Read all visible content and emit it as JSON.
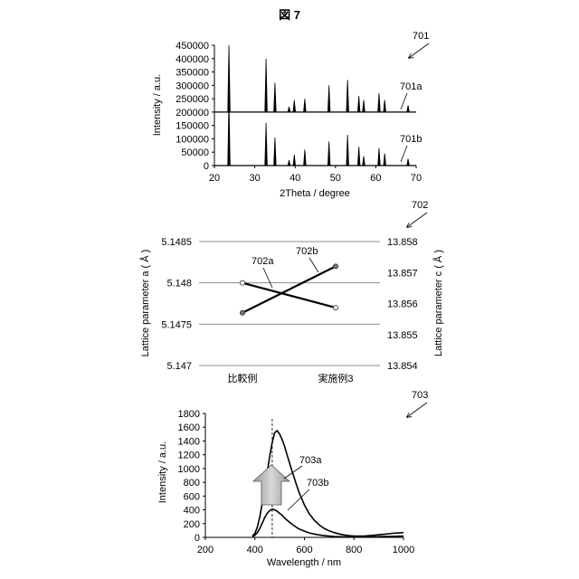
{
  "figure_title": "図 7",
  "panel_701": {
    "ref": "701",
    "ylabel": "Intensity / a.u.",
    "xlabel": "2Theta / degree",
    "yticks": [
      "450000",
      "400000",
      "350000",
      "300000",
      "250000",
      "200000",
      "150000",
      "100000",
      "50000",
      "0"
    ],
    "xticks": [
      "20",
      "30",
      "40",
      "50",
      "60",
      "70"
    ],
    "label_a": "701a",
    "label_b": "701b"
  },
  "panel_702": {
    "ref": "702",
    "ylabel_left": "Lattice parameter a ( Å )",
    "ylabel_right": "Lattice parameter c ( Å )",
    "yticks_left": [
      "5.1485",
      "5.148",
      "5.1475",
      "5.147"
    ],
    "yticks_right": [
      "13.858",
      "13.857",
      "13.856",
      "13.855",
      "13.854"
    ],
    "categories": [
      "比較例",
      "実施例3"
    ],
    "label_a": "702a",
    "label_b": "702b"
  },
  "panel_703": {
    "ref": "703",
    "ylabel": "Intensity / a.u.",
    "xlabel": "Wavelength / nm",
    "yticks": [
      "1800",
      "1600",
      "1400",
      "1200",
      "1000",
      "800",
      "600",
      "400",
      "200",
      "0"
    ],
    "xticks": [
      "200",
      "400",
      "600",
      "800",
      "1000"
    ],
    "label_a": "703a",
    "label_b": "703b"
  },
  "chart_data": [
    {
      "type": "line",
      "panel": "701",
      "xlabel": "2Theta / degree",
      "ylabel": "Intensity / a.u.",
      "xlim": [
        20,
        70
      ],
      "ylim": [
        0,
        450000
      ],
      "grid": false,
      "series": [
        {
          "name": "701a",
          "baseline": 200000,
          "peaks": [
            {
              "x": 23.6,
              "y": 450000
            },
            {
              "x": 32.8,
              "y": 400000
            },
            {
              "x": 35.0,
              "y": 310000
            },
            {
              "x": 38.5,
              "y": 220000
            },
            {
              "x": 39.8,
              "y": 245000
            },
            {
              "x": 42.4,
              "y": 250000
            },
            {
              "x": 48.4,
              "y": 300000
            },
            {
              "x": 53.0,
              "y": 320000
            },
            {
              "x": 55.8,
              "y": 260000
            },
            {
              "x": 57.0,
              "y": 245000
            },
            {
              "x": 60.8,
              "y": 270000
            },
            {
              "x": 62.2,
              "y": 245000
            },
            {
              "x": 68.0,
              "y": 225000
            }
          ]
        },
        {
          "name": "701b",
          "baseline": 0,
          "peaks": [
            {
              "x": 23.6,
              "y": 250000
            },
            {
              "x": 32.8,
              "y": 160000
            },
            {
              "x": 35.0,
              "y": 105000
            },
            {
              "x": 38.5,
              "y": 20000
            },
            {
              "x": 39.8,
              "y": 40000
            },
            {
              "x": 42.4,
              "y": 60000
            },
            {
              "x": 48.4,
              "y": 90000
            },
            {
              "x": 53.0,
              "y": 115000
            },
            {
              "x": 55.8,
              "y": 70000
            },
            {
              "x": 57.0,
              "y": 35000
            },
            {
              "x": 60.8,
              "y": 65000
            },
            {
              "x": 62.2,
              "y": 45000
            },
            {
              "x": 68.0,
              "y": 25000
            }
          ]
        }
      ]
    },
    {
      "type": "line",
      "panel": "702",
      "categories": [
        "比較例",
        "実施例3"
      ],
      "ylim_left": [
        5.147,
        5.1485
      ],
      "ylim_right": [
        13.854,
        13.858
      ],
      "grid": true,
      "series": [
        {
          "name": "702a",
          "axis": "left",
          "marker": "open",
          "values": [
            5.148,
            5.1477
          ]
        },
        {
          "name": "702b",
          "axis": "right",
          "marker": "filled",
          "values": [
            13.8557,
            13.8572
          ]
        }
      ]
    },
    {
      "type": "line",
      "panel": "703",
      "xlabel": "Wavelength / nm",
      "ylabel": "Intensity / a.u.",
      "xlim": [
        200,
        1000
      ],
      "ylim": [
        0,
        1800
      ],
      "grid": false,
      "vline_x": 470,
      "series": [
        {
          "name": "703a",
          "x": [
            390,
            400,
            410,
            420,
            430,
            440,
            450,
            460,
            470,
            480,
            490,
            500,
            510,
            520,
            530,
            540,
            550,
            560,
            570,
            580,
            600,
            620,
            640,
            660,
            680,
            700,
            720,
            740,
            760,
            780,
            800,
            820,
            840,
            860,
            880,
            900,
            920,
            940,
            960,
            980,
            1000
          ],
          "y": [
            20,
            60,
            150,
            300,
            500,
            720,
            950,
            1180,
            1380,
            1520,
            1550,
            1500,
            1420,
            1320,
            1200,
            1080,
            960,
            850,
            740,
            640,
            470,
            340,
            250,
            180,
            130,
            95,
            70,
            50,
            35,
            25,
            20,
            18,
            20,
            25,
            30,
            38,
            45,
            52,
            60,
            65,
            70
          ]
        },
        {
          "name": "703b",
          "x": [
            390,
            400,
            410,
            420,
            430,
            440,
            450,
            460,
            470,
            480,
            490,
            500,
            510,
            520,
            530,
            540,
            550,
            560,
            570,
            580,
            600,
            620,
            640,
            660,
            680,
            700,
            720,
            740,
            760,
            780,
            800,
            820,
            840,
            860,
            880,
            900,
            920,
            940,
            960,
            980,
            1000
          ],
          "y": [
            10,
            30,
            70,
            130,
            210,
            290,
            350,
            390,
            410,
            400,
            380,
            350,
            320,
            280,
            250,
            220,
            190,
            165,
            140,
            120,
            90,
            65,
            48,
            35,
            25,
            18,
            13,
            10,
            8,
            6,
            5,
            5,
            6,
            7,
            8,
            10,
            12,
            14,
            16,
            17,
            18
          ]
        }
      ]
    }
  ]
}
